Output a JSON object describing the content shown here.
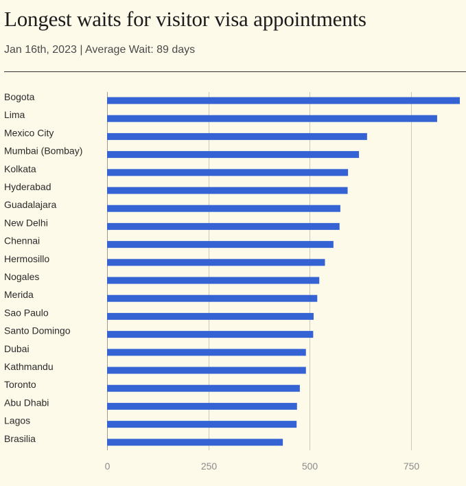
{
  "header": {
    "title": "Longest waits for visitor visa appointments",
    "subtitle": "Jan 16th, 2023 | Average Wait: 89 days"
  },
  "colors": {
    "bar": "#3563d4",
    "background": "#fdfaea",
    "grid": "#c8c8c0"
  },
  "chart_data": {
    "type": "bar",
    "orientation": "horizontal",
    "title": "Longest waits for visitor visa appointments",
    "subtitle": "Jan 16th, 2023 | Average Wait: 89 days",
    "xlabel": "",
    "ylabel": "",
    "categories": [
      "Bogota",
      "Lima",
      "Mexico City",
      "Mumbai (Bombay)",
      "Kolkata",
      "Hyderabad",
      "Guadalajara",
      "New Delhi",
      "Chennai",
      "Hermosillo",
      "Nogales",
      "Merida",
      "Sao Paulo",
      "Santo Domingo",
      "Dubai",
      "Kathmandu",
      "Toronto",
      "Abu Dhabi",
      "Lagos",
      "Brasilia"
    ],
    "values": [
      871,
      815,
      642,
      622,
      595,
      594,
      576,
      574,
      559,
      538,
      524,
      519,
      510,
      509,
      491,
      491,
      476,
      469,
      468,
      434
    ],
    "xlim": [
      0,
      871
    ],
    "xticks": [
      0,
      250,
      500,
      750
    ],
    "xtick_labels": [
      "0",
      "250",
      "500",
      "750"
    ],
    "grid": true,
    "legend": "none"
  }
}
